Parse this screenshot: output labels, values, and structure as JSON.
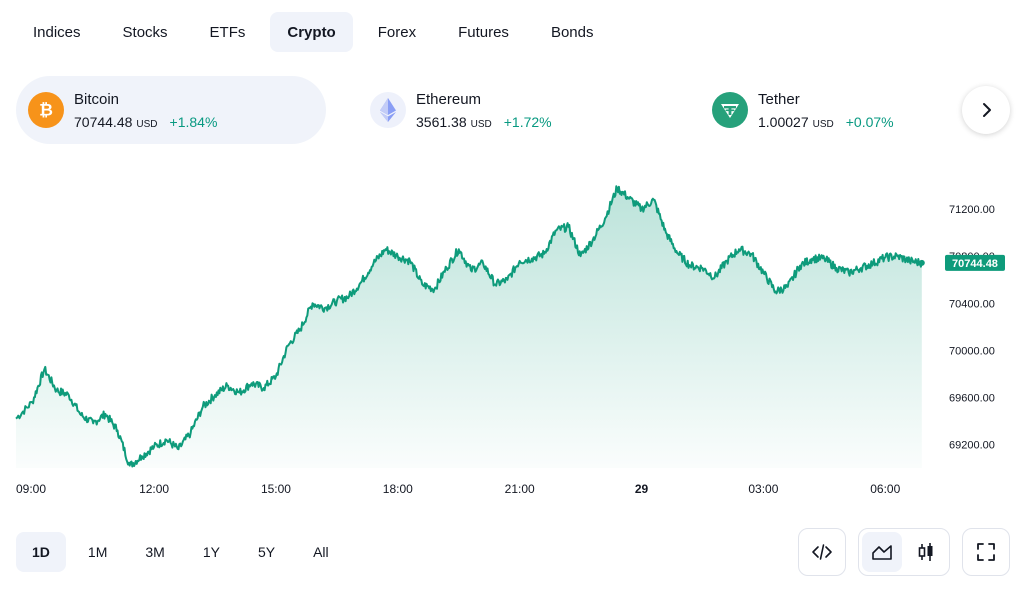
{
  "tabs": [
    {
      "label": "Indices",
      "active": false
    },
    {
      "label": "Stocks",
      "active": false
    },
    {
      "label": "ETFs",
      "active": false
    },
    {
      "label": "Crypto",
      "active": true
    },
    {
      "label": "Forex",
      "active": false
    },
    {
      "label": "Futures",
      "active": false
    },
    {
      "label": "Bonds",
      "active": false
    }
  ],
  "tickers": [
    {
      "name": "Bitcoin",
      "price": "70744.48",
      "currency": "USD",
      "change": "+1.84%",
      "icon": "bitcoin-icon",
      "color": "#f7931a",
      "active": true
    },
    {
      "name": "Ethereum",
      "price": "3561.38",
      "currency": "USD",
      "change": "+1.72%",
      "icon": "ethereum-icon",
      "color": "#627eea",
      "active": false
    },
    {
      "name": "Tether",
      "price": "1.00027",
      "currency": "USD",
      "change": "+0.07%",
      "icon": "tether-icon",
      "color": "#26a17b",
      "active": false
    }
  ],
  "next_icon": "chevron-right-icon",
  "colors": {
    "line": "#0e9b7b",
    "positive": "#089981",
    "active_bg": "#f0f3fa"
  },
  "chart_data": {
    "type": "area",
    "x_ticks": [
      "09:00",
      "12:00",
      "15:00",
      "18:00",
      "21:00",
      "29",
      "03:00",
      "06:00"
    ],
    "x_tick_hours": [
      0,
      3,
      6,
      9,
      12,
      15,
      18,
      21
    ],
    "x_range_hours": [
      -0.4,
      22.2
    ],
    "y_ticks": [
      "71200.00",
      "70800.00",
      "70400.00",
      "70000.00",
      "69600.00",
      "69200.00"
    ],
    "y_tick_values": [
      71200,
      70800,
      70400,
      70000,
      69600,
      69200
    ],
    "ylim": [
      69000,
      71550
    ],
    "last_price": "70744.48",
    "x": [
      -0.4,
      0.0,
      0.3,
      0.6,
      0.9,
      1.2,
      1.5,
      1.8,
      2.1,
      2.4,
      2.7,
      3.0,
      3.3,
      3.6,
      3.9,
      4.2,
      4.5,
      4.8,
      5.1,
      5.4,
      5.7,
      6.0,
      6.3,
      6.6,
      6.9,
      7.2,
      7.5,
      7.8,
      8.1,
      8.4,
      8.7,
      9.0,
      9.3,
      9.6,
      9.9,
      10.2,
      10.5,
      10.8,
      11.1,
      11.4,
      11.7,
      12.0,
      12.3,
      12.6,
      12.9,
      13.2,
      13.5,
      13.8,
      14.1,
      14.4,
      14.7,
      15.0,
      15.3,
      15.6,
      15.9,
      16.2,
      16.5,
      16.8,
      17.1,
      17.4,
      17.7,
      18.0,
      18.3,
      18.6,
      18.9,
      19.2,
      19.5,
      19.8,
      20.1,
      20.4,
      20.7,
      21.0,
      21.3,
      21.6,
      21.9
    ],
    "values": [
      69420,
      69560,
      69840,
      69660,
      69620,
      69450,
      69380,
      69460,
      69320,
      69020,
      69100,
      69180,
      69240,
      69160,
      69300,
      69520,
      69620,
      69700,
      69640,
      69720,
      69680,
      69780,
      70040,
      70180,
      70400,
      70360,
      70420,
      70460,
      70580,
      70740,
      70860,
      70800,
      70760,
      70560,
      70520,
      70700,
      70860,
      70680,
      70740,
      70560,
      70600,
      70760,
      70780,
      70820,
      71020,
      71050,
      70800,
      70940,
      71120,
      71380,
      71290,
      71200,
      71280,
      71000,
      70820,
      70720,
      70700,
      70620,
      70760,
      70860,
      70820,
      70660,
      70500,
      70540,
      70720,
      70780,
      70780,
      70700,
      70660,
      70700,
      70740,
      70790,
      70800,
      70760,
      70744
    ]
  },
  "ranges": [
    {
      "label": "1D",
      "active": true
    },
    {
      "label": "1M",
      "active": false
    },
    {
      "label": "3M",
      "active": false
    },
    {
      "label": "1Y",
      "active": false
    },
    {
      "label": "5Y",
      "active": false
    },
    {
      "label": "All",
      "active": false
    }
  ],
  "tools": {
    "embed_icon": "code-icon",
    "area_icon": "area-chart-icon",
    "candle_icon": "candlestick-icon",
    "fullscreen_icon": "fullscreen-icon"
  }
}
